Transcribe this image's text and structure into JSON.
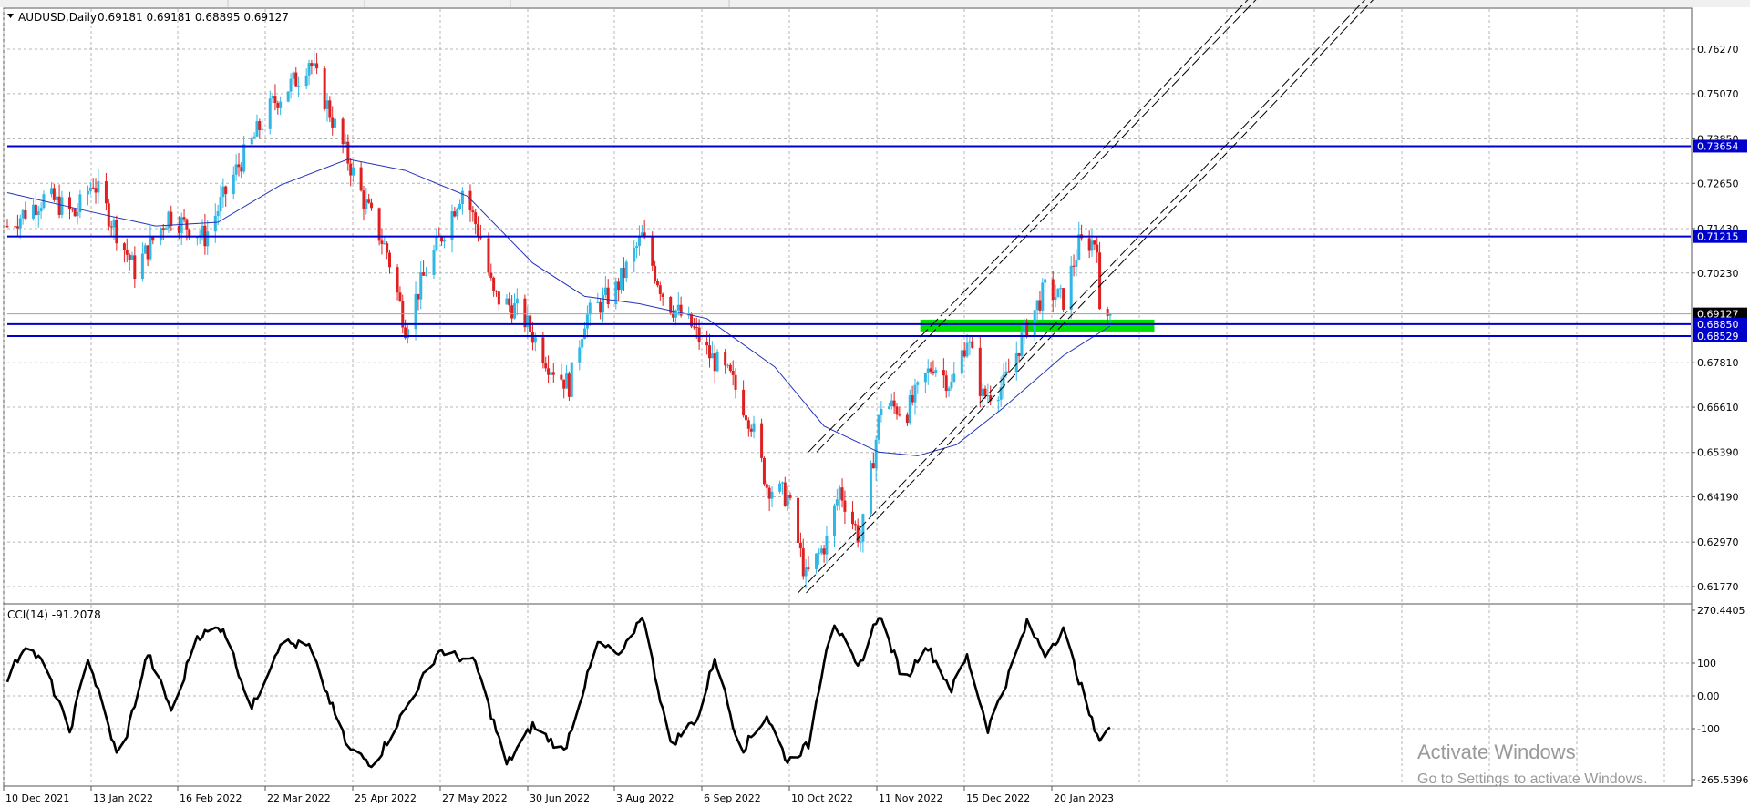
{
  "window": {
    "title": "AUDUSD,Daily",
    "ohlc": "0.69181 0.69181 0.68895 0.69127"
  },
  "price_panel": {
    "price_ticks": [
      "0.76270",
      "0.75070",
      "0.73850",
      "0.72650",
      "0.71430",
      "0.70230",
      "0.69127",
      "0.67810",
      "0.66610",
      "0.65390",
      "0.64190",
      "0.62970",
      "0.61770"
    ],
    "horizontal_levels": [
      {
        "label": "0.73654",
        "value": 0.73654
      },
      {
        "label": "0.71215",
        "value": 0.71215
      },
      {
        "label": "0.68850",
        "value": 0.6885
      },
      {
        "label": "0.68529",
        "value": 0.68529
      }
    ],
    "current_price_label": "0.69127"
  },
  "cci_panel": {
    "title": "CCI(14) -91.2078",
    "ticks": [
      "270.4405",
      "100",
      "0.00",
      "-100",
      "-265.5396"
    ]
  },
  "x_axis": {
    "labels": [
      "10 Dec 2021",
      "13 Jan 2022",
      "16 Feb 2022",
      "22 Mar 2022",
      "25 Apr 2022",
      "27 May 2022",
      "30 Jun 2022",
      "3 Aug 2022",
      "6 Sep 2022",
      "10 Oct 2022",
      "11 Nov 2022",
      "15 Dec 2022",
      "20 Jan 2023"
    ]
  },
  "watermark": {
    "line1": "Activate Windows",
    "line2": "Go to Settings to activate Windows."
  },
  "colors": {
    "bull": "#31b7e6",
    "bear": "#e02020",
    "level": "#0000cc",
    "ma": "#2233bb",
    "zone": "#00e000",
    "cci": "#000000"
  },
  "chart_data": {
    "type": "candlestick",
    "title": "AUDUSD,Daily",
    "x_range": [
      "10 Dec 2021",
      "7 Feb 2023"
    ],
    "y_range": [
      0.6145,
      0.769
    ],
    "grid": true,
    "anchors": [
      [
        "2021-12-10",
        0.715
      ],
      [
        "2021-12-25",
        0.723
      ],
      [
        "2022-01-05",
        0.718
      ],
      [
        "2022-01-12",
        0.727
      ],
      [
        "2022-01-28",
        0.703
      ],
      [
        "2022-02-10",
        0.718
      ],
      [
        "2022-02-24",
        0.712
      ],
      [
        "2022-03-08",
        0.73
      ],
      [
        "2022-03-22",
        0.748
      ],
      [
        "2022-04-02",
        0.756
      ],
      [
        "2022-04-05",
        0.76
      ],
      [
        "2022-04-15",
        0.742
      ],
      [
        "2022-04-26",
        0.722
      ],
      [
        "2022-05-05",
        0.708
      ],
      [
        "2022-05-12",
        0.688
      ],
      [
        "2022-05-20",
        0.703
      ],
      [
        "2022-06-03",
        0.725
      ],
      [
        "2022-06-10",
        0.712
      ],
      [
        "2022-06-15",
        0.696
      ],
      [
        "2022-06-25",
        0.692
      ],
      [
        "2022-07-06",
        0.678
      ],
      [
        "2022-07-14",
        0.672
      ],
      [
        "2022-07-20",
        0.69
      ],
      [
        "2022-08-01",
        0.698
      ],
      [
        "2022-08-11",
        0.712
      ],
      [
        "2022-08-20",
        0.695
      ],
      [
        "2022-08-30",
        0.688
      ],
      [
        "2022-09-06",
        0.68
      ],
      [
        "2022-09-14",
        0.674
      ],
      [
        "2022-09-22",
        0.662
      ],
      [
        "2022-09-28",
        0.645
      ],
      [
        "2022-10-06",
        0.642
      ],
      [
        "2022-10-13",
        0.62
      ],
      [
        "2022-10-21",
        0.63
      ],
      [
        "2022-10-26",
        0.644
      ],
      [
        "2022-11-03",
        0.63
      ],
      [
        "2022-11-07",
        0.648
      ],
      [
        "2022-11-11",
        0.667
      ],
      [
        "2022-11-21",
        0.665
      ],
      [
        "2022-12-01",
        0.678
      ],
      [
        "2022-12-08",
        0.672
      ],
      [
        "2022-12-14",
        0.685
      ],
      [
        "2022-12-20",
        0.669
      ],
      [
        "2022-12-28",
        0.672
      ],
      [
        "2023-01-06",
        0.688
      ],
      [
        "2023-01-13",
        0.698
      ],
      [
        "2023-01-20",
        0.695
      ],
      [
        "2023-01-26",
        0.71
      ],
      [
        "2023-02-02",
        0.711
      ],
      [
        "2023-02-03",
        0.69
      ],
      [
        "2023-02-07",
        0.6913
      ]
    ],
    "moving_average": [
      [
        "2021-12-10",
        0.724
      ],
      [
        "2022-01-10",
        0.719
      ],
      [
        "2022-02-05",
        0.715
      ],
      [
        "2022-03-01",
        0.716
      ],
      [
        "2022-03-25",
        0.726
      ],
      [
        "2022-04-20",
        0.733
      ],
      [
        "2022-05-12",
        0.73
      ],
      [
        "2022-06-05",
        0.723
      ],
      [
        "2022-06-30",
        0.705
      ],
      [
        "2022-07-20",
        0.696
      ],
      [
        "2022-08-10",
        0.694
      ],
      [
        "2022-09-05",
        0.69
      ],
      [
        "2022-10-01",
        0.677
      ],
      [
        "2022-10-20",
        0.661
      ],
      [
        "2022-11-10",
        0.654
      ],
      [
        "2022-11-25",
        0.653
      ],
      [
        "2022-12-10",
        0.656
      ],
      [
        "2022-12-28",
        0.666
      ],
      [
        "2023-01-20",
        0.68
      ],
      [
        "2023-02-07",
        0.688
      ]
    ],
    "channel_lines": [
      {
        "from": [
          "2022-10-10",
          0.616
        ],
        "to": [
          "2023-05-20",
          0.779
        ],
        "style": "dashed-pair"
      },
      {
        "from": [
          "2022-10-14",
          0.654
        ],
        "to": [
          "2023-04-05",
          0.779
        ],
        "style": "dashed-pair"
      }
    ],
    "zone": {
      "from": "2022-11-26",
      "to": "2023-02-24",
      "y1": 0.6885,
      "y2": 0.687
    },
    "cci": {
      "name": "CCI(14)",
      "last": -91.2078,
      "range": [
        -265.5396,
        270.4405
      ],
      "anchors": [
        [
          "2021-12-10",
          50
        ],
        [
          "2021-12-17",
          160
        ],
        [
          "2021-12-24",
          95
        ],
        [
          "2022-01-03",
          -110
        ],
        [
          "2022-01-10",
          120
        ],
        [
          "2022-01-22",
          -205
        ],
        [
          "2022-02-02",
          130
        ],
        [
          "2022-02-12",
          -60
        ],
        [
          "2022-02-20",
          180
        ],
        [
          "2022-03-03",
          210
        ],
        [
          "2022-03-14",
          -40
        ],
        [
          "2022-03-25",
          165
        ],
        [
          "2022-04-05",
          150
        ],
        [
          "2022-04-20",
          -160
        ],
        [
          "2022-04-30",
          -210
        ],
        [
          "2022-05-12",
          -40
        ],
        [
          "2022-05-25",
          140
        ],
        [
          "2022-06-08",
          100
        ],
        [
          "2022-06-20",
          -210
        ],
        [
          "2022-06-30",
          -90
        ],
        [
          "2022-07-12",
          -170
        ],
        [
          "2022-07-25",
          160
        ],
        [
          "2022-08-03",
          120
        ],
        [
          "2022-08-11",
          250
        ],
        [
          "2022-08-22",
          -150
        ],
        [
          "2022-09-02",
          -60
        ],
        [
          "2022-09-08",
          120
        ],
        [
          "2022-09-18",
          -170
        ],
        [
          "2022-09-28",
          -60
        ],
        [
          "2022-10-06",
          -200
        ],
        [
          "2022-10-14",
          -150
        ],
        [
          "2022-10-23",
          240
        ],
        [
          "2022-11-02",
          80
        ],
        [
          "2022-11-10",
          250
        ],
        [
          "2022-11-20",
          40
        ],
        [
          "2022-11-28",
          160
        ],
        [
          "2022-12-08",
          20
        ],
        [
          "2022-12-14",
          120
        ],
        [
          "2022-12-22",
          -100
        ],
        [
          "2022-12-28",
          20
        ],
        [
          "2023-01-06",
          220
        ],
        [
          "2023-01-13",
          130
        ],
        [
          "2023-01-20",
          200
        ],
        [
          "2023-01-26",
          50
        ],
        [
          "2023-02-02",
          -130
        ],
        [
          "2023-02-07",
          -91
        ]
      ]
    }
  }
}
